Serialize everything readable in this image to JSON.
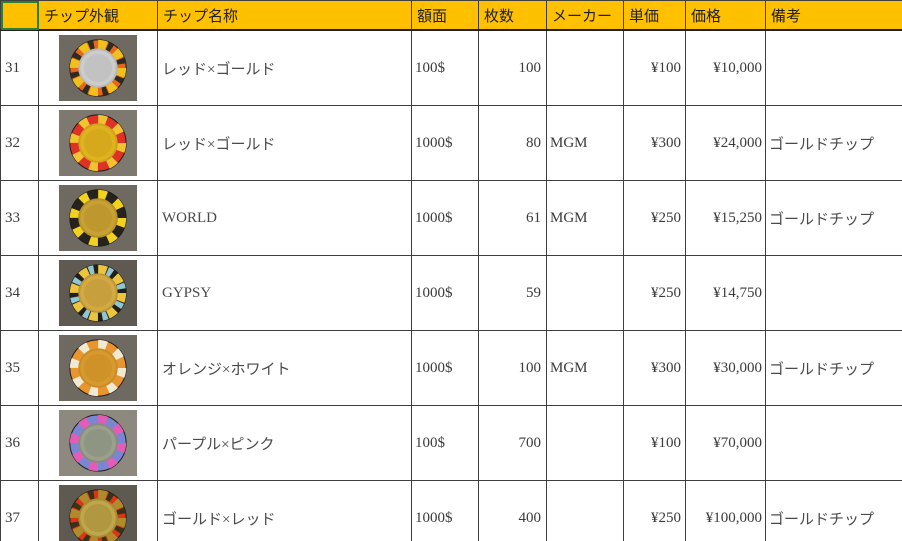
{
  "colors": {
    "header_bg": "#FFC000",
    "grid_line": "#3f3f3f",
    "active_cell_border": "#2e7d32",
    "body_text": "#3a3a3a"
  },
  "table": {
    "headers": {
      "rownum": "",
      "appearance": "チップ外観",
      "name": "チップ名称",
      "denom": "額面",
      "count": "枚数",
      "maker": "メーカー",
      "unit_price": "単価",
      "price": "価格",
      "notes": "備考"
    },
    "rows": [
      {
        "row_num": "31",
        "name": "レッド×ゴールド",
        "denom": "100$",
        "count": "100",
        "maker": "",
        "unit_price": "¥100",
        "price": "¥10,000",
        "notes": "",
        "chip": {
          "photo_bg": "#6e6a62",
          "ring": "#e4661f",
          "spots": [
            "#f2c01c",
            "#2e2c20"
          ],
          "center": "#cccccc",
          "center2": "#b9b9b9"
        }
      },
      {
        "row_num": "32",
        "name": "レッド×ゴールド",
        "denom": "1000$",
        "count": "80",
        "maker": "MGM",
        "unit_price": "¥300",
        "price": "¥24,000",
        "notes": "ゴールドチップ",
        "chip": {
          "photo_bg": "#7d7970",
          "ring": "#e03126",
          "spots": [
            "#f2c233"
          ],
          "center": "#e0b21f",
          "center2": "#cda31c"
        }
      },
      {
        "row_num": "33",
        "name": "WORLD",
        "denom": "1000$",
        "count": "61",
        "maker": "MGM",
        "unit_price": "¥250",
        "price": "¥15,250",
        "notes": "ゴールドチップ",
        "chip": {
          "photo_bg": "#6e6a62",
          "ring": "#26231d",
          "spots": [
            "#f2d11f"
          ],
          "center": "#c7a133",
          "center2": "#b6912c"
        }
      },
      {
        "row_num": "34",
        "name": "GYPSY",
        "denom": "1000$",
        "count": "59",
        "maker": "",
        "unit_price": "¥250",
        "price": "¥14,750",
        "notes": "",
        "chip": {
          "photo_bg": "#5e5a52",
          "ring": "#211f1a",
          "spots": [
            "#ecc53e",
            "#8fc6cf"
          ],
          "center": "#d2a943",
          "center2": "#c09739"
        }
      },
      {
        "row_num": "35",
        "name": "オレンジ×ホワイト",
        "denom": "1000$",
        "count": "100",
        "maker": "MGM",
        "unit_price": "¥300",
        "price": "¥30,000",
        "notes": "ゴールドチップ",
        "chip": {
          "photo_bg": "#6e6a62",
          "ring": "#e9952f",
          "spots": [
            "#f2e9d2"
          ],
          "center": "#d89a2e",
          "center2": "#c78c27"
        }
      },
      {
        "row_num": "36",
        "name": "パープル×ピンク",
        "denom": "100$",
        "count": "700",
        "maker": "",
        "unit_price": "¥100",
        "price": "¥70,000",
        "notes": "",
        "chip": {
          "photo_bg": "#8d897f",
          "ring": "#7b86d2",
          "spots": [
            "#e55cb6"
          ],
          "center": "#9aa08c",
          "center2": "#878d7b"
        }
      },
      {
        "row_num": "37",
        "name": "ゴールド×レッド",
        "denom": "1000$",
        "count": "400",
        "maker": "",
        "unit_price": "¥250",
        "price": "¥100,000",
        "notes": "ゴールドチップ",
        "chip": {
          "photo_bg": "#5e5a52",
          "ring": "#d93516",
          "spots": [
            "#b18a2c",
            "#3a3217"
          ],
          "center": "#bfa64a",
          "center2": "#a68d38"
        }
      }
    ]
  }
}
